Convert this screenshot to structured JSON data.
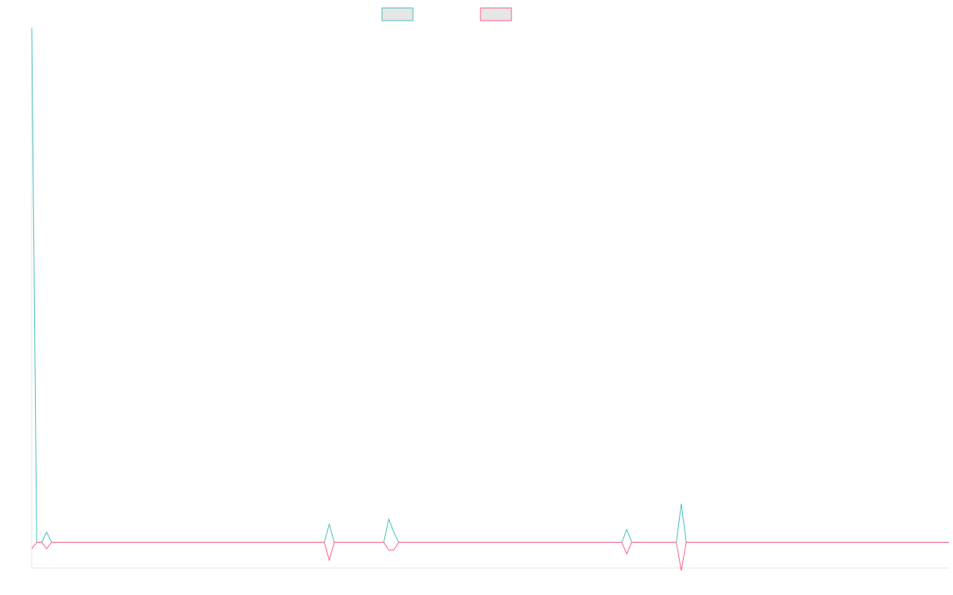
{
  "chart_data": {
    "type": "line",
    "title": "",
    "xlabel": "",
    "ylabel": "",
    "ylim": [
      -1,
      20
    ],
    "grid": false,
    "legend": "top-center",
    "series": [
      {
        "color": "#4bc0c0",
        "values": [
          20.0,
          0.0,
          0.0,
          0.4,
          0.0,
          0.0,
          0.0,
          0.0,
          0.0,
          0.0,
          0.0,
          0.0,
          0.0,
          0.0,
          0.0,
          0.0,
          0.0,
          0.0,
          0.0,
          0.0,
          0.0,
          0.0,
          0.0,
          0.0,
          0.0,
          0.0,
          0.0,
          0.0,
          0.0,
          0.0,
          0.0,
          0.0,
          0.0,
          0.0,
          0.0,
          0.0,
          0.0,
          0.0,
          0.0,
          0.0,
          0.0,
          0.0,
          0.0,
          0.0,
          0.0,
          0.0,
          0.0,
          0.0,
          0.0,
          0.0,
          0.0,
          0.0,
          0.0,
          0.0,
          0.0,
          0.0,
          0.0,
          0.0,
          0.0,
          0.0,
          0.7,
          0.0,
          0.0,
          0.0,
          0.0,
          0.0,
          0.0,
          0.0,
          0.0,
          0.0,
          0.0,
          0.0,
          0.9,
          0.4,
          0.0,
          0.0,
          0.0,
          0.0,
          0.0,
          0.0,
          0.0,
          0.0,
          0.0,
          0.0,
          0.0,
          0.0,
          0.0,
          0.0,
          0.0,
          0.0,
          0.0,
          0.0,
          0.0,
          0.0,
          0.0,
          0.0,
          0.0,
          0.0,
          0.0,
          0.0,
          0.0,
          0.0,
          0.0,
          0.0,
          0.0,
          0.0,
          0.0,
          0.0,
          0.0,
          0.0,
          0.0,
          0.0,
          0.0,
          0.0,
          0.0,
          0.0,
          0.0,
          0.0,
          0.0,
          0.0,
          0.5,
          0.0,
          0.0,
          0.0,
          0.0,
          0.0,
          0.0,
          0.0,
          0.0,
          0.0,
          0.0,
          1.5,
          0.0,
          0.0,
          0.0,
          0.0,
          0.0,
          0.0,
          0.0,
          0.0,
          0.0,
          0.0,
          0.0,
          0.0,
          0.0,
          0.0,
          0.0,
          0.0,
          0.0,
          0.0,
          0.0,
          0.0,
          0.0,
          0.0,
          0.0,
          0.0,
          0.0,
          0.0,
          0.0,
          0.0,
          0.0,
          0.0,
          0.0,
          0.0,
          0.0,
          0.0,
          0.0,
          0.0,
          0.0,
          0.0,
          0.0,
          0.0,
          0.0,
          0.0,
          0.0,
          0.0,
          0.0,
          0.0,
          0.0,
          0.0,
          0.0,
          0.0,
          0.0,
          0.0,
          0.0,
          0.0
        ]
      },
      {
        "color": "#ff6384",
        "values": [
          -0.25,
          0.0,
          0.0,
          -0.25,
          0.0,
          0.0,
          0.0,
          0.0,
          0.0,
          0.0,
          0.0,
          0.0,
          0.0,
          0.0,
          0.0,
          0.0,
          0.0,
          0.0,
          0.0,
          0.0,
          0.0,
          0.0,
          0.0,
          0.0,
          0.0,
          0.0,
          0.0,
          0.0,
          0.0,
          0.0,
          0.0,
          0.0,
          0.0,
          0.0,
          0.0,
          0.0,
          0.0,
          0.0,
          0.0,
          0.0,
          0.0,
          0.0,
          0.0,
          0.0,
          0.0,
          0.0,
          0.0,
          0.0,
          0.0,
          0.0,
          0.0,
          0.0,
          0.0,
          0.0,
          0.0,
          0.0,
          0.0,
          0.0,
          0.0,
          0.0,
          -0.7,
          0.0,
          0.0,
          0.0,
          0.0,
          0.0,
          0.0,
          0.0,
          0.0,
          0.0,
          0.0,
          0.0,
          -0.3,
          -0.3,
          0.0,
          0.0,
          0.0,
          0.0,
          0.0,
          0.0,
          0.0,
          0.0,
          0.0,
          0.0,
          0.0,
          0.0,
          0.0,
          0.0,
          0.0,
          0.0,
          0.0,
          0.0,
          0.0,
          0.0,
          0.0,
          0.0,
          0.0,
          0.0,
          0.0,
          0.0,
          0.0,
          0.0,
          0.0,
          0.0,
          0.0,
          0.0,
          0.0,
          0.0,
          0.0,
          0.0,
          0.0,
          0.0,
          0.0,
          0.0,
          0.0,
          0.0,
          0.0,
          0.0,
          0.0,
          0.0,
          -0.45,
          0.0,
          0.0,
          0.0,
          0.0,
          0.0,
          0.0,
          0.0,
          0.0,
          0.0,
          0.0,
          -1.1,
          0.0,
          0.0,
          0.0,
          0.0,
          0.0,
          0.0,
          0.0,
          0.0,
          0.0,
          0.0,
          0.0,
          0.0,
          0.0,
          0.0,
          0.0,
          0.0,
          0.0,
          0.0,
          0.0,
          0.0,
          0.0,
          0.0,
          0.0,
          0.0,
          0.0,
          0.0,
          0.0,
          0.0,
          0.0,
          0.0,
          0.0,
          0.0,
          0.0,
          0.0,
          0.0,
          0.0,
          0.0,
          0.0,
          0.0,
          0.0,
          0.0,
          0.0,
          0.0,
          0.0,
          0.0,
          0.0,
          0.0,
          0.0,
          0.0,
          0.0,
          0.0,
          0.0,
          0.0,
          0.0
        ]
      }
    ]
  }
}
